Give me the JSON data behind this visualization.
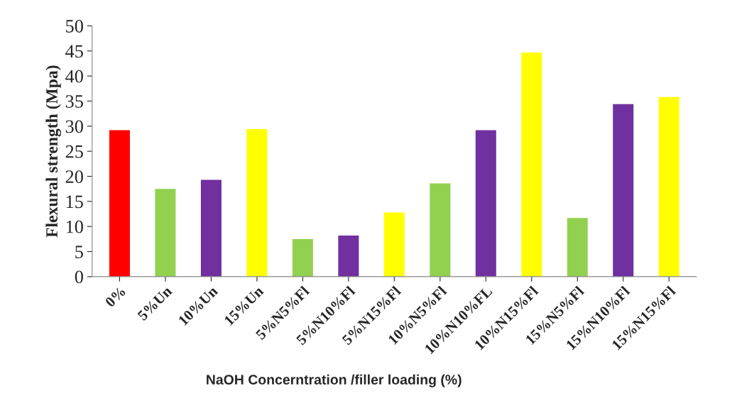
{
  "chart_data": {
    "type": "bar",
    "xlabel": "NaOH Concerntration /filler loading (%)",
    "ylabel": "Flexural strength (Mpa)",
    "categories": [
      "0%",
      "5%Un",
      "10%Un",
      "15%Un",
      "5%N5%Fl",
      "5%N10%Fl",
      "5%N15%Fl",
      "10%N5%Fl",
      "10%N10%FL",
      "10%N15%Fl",
      "15%N5%Fl",
      "15%N10%Fl",
      "15%N15%Fl"
    ],
    "values": [
      29.2,
      17.5,
      19.3,
      29.4,
      7.5,
      8.2,
      12.8,
      18.6,
      29.2,
      44.7,
      11.7,
      34.4,
      35.8
    ],
    "colors": [
      "#ff0000",
      "#92d050",
      "#7030a0",
      "#ffff00",
      "#92d050",
      "#7030a0",
      "#ffff00",
      "#92d050",
      "#7030a0",
      "#ffff00",
      "#92d050",
      "#7030a0",
      "#ffff00"
    ],
    "ylim": [
      0,
      50
    ],
    "yticks": [
      0,
      5,
      10,
      15,
      20,
      25,
      30,
      35,
      40,
      45,
      50
    ],
    "grid": false,
    "legend": false
  }
}
